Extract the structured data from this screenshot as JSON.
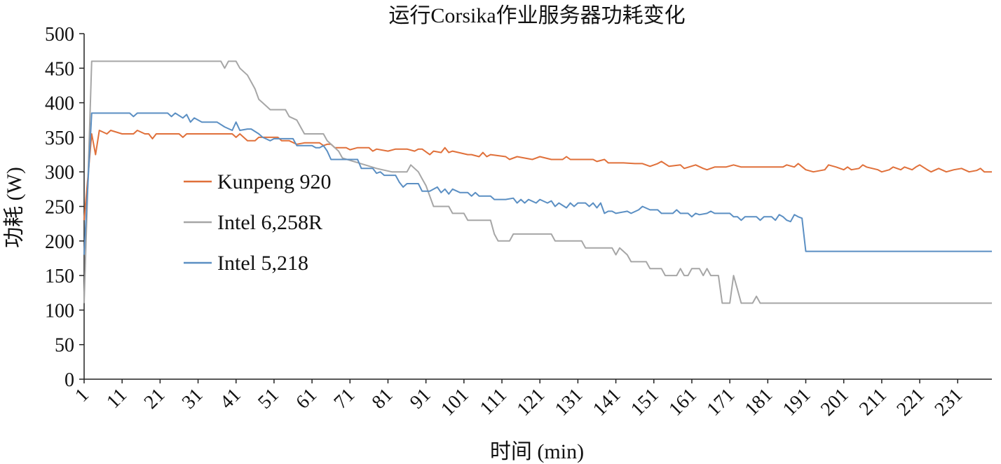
{
  "chart_data": {
    "type": "line",
    "title": "运行Corsika作业服务器功耗变化",
    "xlabel": "时间 (min)",
    "ylabel": "功耗 (W)",
    "xlim": [
      1,
      240
    ],
    "ylim": [
      0,
      500
    ],
    "y_ticks": [
      0,
      50,
      100,
      150,
      200,
      250,
      300,
      350,
      400,
      450,
      500
    ],
    "x_ticks": [
      1,
      11,
      21,
      31,
      41,
      51,
      61,
      71,
      81,
      91,
      101,
      111,
      121,
      131,
      141,
      151,
      161,
      171,
      181,
      191,
      201,
      211,
      221,
      231
    ],
    "grid": false,
    "legend_position": "middle-left",
    "series": [
      {
        "name": "Kunpeng 920",
        "color": "#E0703A",
        "points": [
          [
            1,
            230
          ],
          [
            3,
            355
          ],
          [
            4,
            325
          ],
          [
            5,
            360
          ],
          [
            7,
            355
          ],
          [
            8,
            360
          ],
          [
            11,
            355
          ],
          [
            14,
            355
          ],
          [
            15,
            360
          ],
          [
            17,
            355
          ],
          [
            18,
            355
          ],
          [
            19,
            348
          ],
          [
            20,
            355
          ],
          [
            26,
            355
          ],
          [
            27,
            350
          ],
          [
            28,
            355
          ],
          [
            40,
            355
          ],
          [
            41,
            350
          ],
          [
            42,
            355
          ],
          [
            44,
            345
          ],
          [
            46,
            345
          ],
          [
            47,
            350
          ],
          [
            52,
            350
          ],
          [
            53,
            345
          ],
          [
            55,
            345
          ],
          [
            57,
            340
          ],
          [
            59,
            342
          ],
          [
            63,
            342
          ],
          [
            64,
            338
          ],
          [
            65,
            340
          ],
          [
            66,
            340
          ],
          [
            67,
            335
          ],
          [
            70,
            335
          ],
          [
            71,
            332
          ],
          [
            73,
            335
          ],
          [
            76,
            335
          ],
          [
            77,
            330
          ],
          [
            78,
            333
          ],
          [
            81,
            330
          ],
          [
            83,
            333
          ],
          [
            86,
            333
          ],
          [
            88,
            330
          ],
          [
            89,
            333
          ],
          [
            90,
            333
          ],
          [
            92,
            325
          ],
          [
            93,
            330
          ],
          [
            95,
            328
          ],
          [
            96,
            335
          ],
          [
            97,
            328
          ],
          [
            98,
            330
          ],
          [
            102,
            325
          ],
          [
            103,
            325
          ],
          [
            105,
            322
          ],
          [
            106,
            328
          ],
          [
            107,
            322
          ],
          [
            108,
            325
          ],
          [
            112,
            322
          ],
          [
            113,
            318
          ],
          [
            115,
            322
          ],
          [
            119,
            318
          ],
          [
            121,
            322
          ],
          [
            124,
            318
          ],
          [
            127,
            318
          ],
          [
            128,
            322
          ],
          [
            129,
            318
          ],
          [
            135,
            318
          ],
          [
            136,
            315
          ],
          [
            138,
            318
          ],
          [
            139,
            313
          ],
          [
            143,
            313
          ],
          [
            146,
            312
          ],
          [
            148,
            312
          ],
          [
            150,
            308
          ],
          [
            152,
            312
          ],
          [
            153,
            315
          ],
          [
            155,
            308
          ],
          [
            158,
            310
          ],
          [
            159,
            305
          ],
          [
            162,
            310
          ],
          [
            164,
            305
          ],
          [
            165,
            303
          ],
          [
            167,
            307
          ],
          [
            170,
            307
          ],
          [
            172,
            310
          ],
          [
            174,
            307
          ],
          [
            185,
            307
          ],
          [
            186,
            310
          ],
          [
            188,
            307
          ],
          [
            189,
            312
          ],
          [
            191,
            303
          ],
          [
            193,
            300
          ],
          [
            196,
            303
          ],
          [
            197,
            310
          ],
          [
            199,
            307
          ],
          [
            201,
            303
          ],
          [
            202,
            307
          ],
          [
            203,
            303
          ],
          [
            205,
            305
          ],
          [
            206,
            310
          ],
          [
            207,
            307
          ],
          [
            210,
            303
          ],
          [
            211,
            300
          ],
          [
            213,
            303
          ],
          [
            214,
            307
          ],
          [
            216,
            303
          ],
          [
            217,
            307
          ],
          [
            219,
            303
          ],
          [
            220,
            307
          ],
          [
            221,
            310
          ],
          [
            223,
            303
          ],
          [
            224,
            300
          ],
          [
            226,
            305
          ],
          [
            228,
            300
          ],
          [
            230,
            303
          ],
          [
            232,
            305
          ],
          [
            234,
            300
          ],
          [
            236,
            302
          ],
          [
            237,
            305
          ],
          [
            238,
            300
          ],
          [
            240,
            300
          ]
        ]
      },
      {
        "name": "Intel 6,258R",
        "color": "#A6A6A6",
        "points": [
          [
            1,
            110
          ],
          [
            3,
            460
          ],
          [
            37,
            460
          ],
          [
            38,
            450
          ],
          [
            39,
            460
          ],
          [
            41,
            460
          ],
          [
            42,
            450
          ],
          [
            44,
            440
          ],
          [
            45,
            430
          ],
          [
            46,
            420
          ],
          [
            47,
            405
          ],
          [
            48,
            400
          ],
          [
            50,
            390
          ],
          [
            54,
            390
          ],
          [
            55,
            380
          ],
          [
            57,
            375
          ],
          [
            58,
            365
          ],
          [
            59,
            355
          ],
          [
            64,
            355
          ],
          [
            65,
            345
          ],
          [
            68,
            330
          ],
          [
            69,
            320
          ],
          [
            72,
            315
          ],
          [
            75,
            310
          ],
          [
            78,
            305
          ],
          [
            82,
            300
          ],
          [
            86,
            300
          ],
          [
            87,
            310
          ],
          [
            89,
            300
          ],
          [
            90,
            290
          ],
          [
            91,
            280
          ],
          [
            92,
            265
          ],
          [
            93,
            250
          ],
          [
            97,
            250
          ],
          [
            98,
            240
          ],
          [
            101,
            240
          ],
          [
            102,
            230
          ],
          [
            108,
            230
          ],
          [
            109,
            210
          ],
          [
            110,
            200
          ],
          [
            113,
            200
          ],
          [
            114,
            210
          ],
          [
            124,
            210
          ],
          [
            125,
            200
          ],
          [
            132,
            200
          ],
          [
            133,
            190
          ],
          [
            140,
            190
          ],
          [
            141,
            180
          ],
          [
            142,
            190
          ],
          [
            144,
            180
          ],
          [
            145,
            170
          ],
          [
            149,
            170
          ],
          [
            150,
            160
          ],
          [
            153,
            160
          ],
          [
            154,
            150
          ],
          [
            157,
            150
          ],
          [
            158,
            160
          ],
          [
            159,
            150
          ],
          [
            160,
            150
          ],
          [
            161,
            160
          ],
          [
            163,
            160
          ],
          [
            164,
            150
          ],
          [
            165,
            160
          ],
          [
            166,
            150
          ],
          [
            168,
            150
          ],
          [
            169,
            110
          ],
          [
            171,
            110
          ],
          [
            172,
            150
          ],
          [
            173,
            130
          ],
          [
            174,
            110
          ],
          [
            177,
            110
          ],
          [
            178,
            120
          ],
          [
            179,
            110
          ],
          [
            240,
            110
          ]
        ]
      },
      {
        "name": "Intel 5,218",
        "color": "#5B8FC3",
        "points": [
          [
            1,
            180
          ],
          [
            3,
            385
          ],
          [
            13,
            385
          ],
          [
            14,
            380
          ],
          [
            15,
            385
          ],
          [
            23,
            385
          ],
          [
            24,
            380
          ],
          [
            25,
            385
          ],
          [
            27,
            378
          ],
          [
            28,
            383
          ],
          [
            29,
            372
          ],
          [
            30,
            378
          ],
          [
            32,
            372
          ],
          [
            36,
            372
          ],
          [
            38,
            365
          ],
          [
            40,
            360
          ],
          [
            41,
            372
          ],
          [
            42,
            360
          ],
          [
            44,
            362
          ],
          [
            45,
            362
          ],
          [
            47,
            355
          ],
          [
            48,
            350
          ],
          [
            50,
            345
          ],
          [
            51,
            348
          ],
          [
            52,
            348
          ],
          [
            56,
            348
          ],
          [
            57,
            338
          ],
          [
            61,
            338
          ],
          [
            62,
            335
          ],
          [
            63,
            335
          ],
          [
            64,
            338
          ],
          [
            65,
            330
          ],
          [
            66,
            318
          ],
          [
            73,
            318
          ],
          [
            74,
            305
          ],
          [
            77,
            305
          ],
          [
            78,
            298
          ],
          [
            79,
            300
          ],
          [
            80,
            295
          ],
          [
            83,
            295
          ],
          [
            84,
            285
          ],
          [
            85,
            278
          ],
          [
            86,
            283
          ],
          [
            89,
            283
          ],
          [
            90,
            272
          ],
          [
            92,
            272
          ],
          [
            94,
            278
          ],
          [
            95,
            270
          ],
          [
            96,
            275
          ],
          [
            97,
            268
          ],
          [
            98,
            275
          ],
          [
            100,
            270
          ],
          [
            102,
            270
          ],
          [
            103,
            265
          ],
          [
            104,
            270
          ],
          [
            105,
            265
          ],
          [
            108,
            265
          ],
          [
            109,
            260
          ],
          [
            112,
            260
          ],
          [
            114,
            262
          ],
          [
            115,
            255
          ],
          [
            116,
            260
          ],
          [
            117,
            255
          ],
          [
            118,
            260
          ],
          [
            120,
            255
          ],
          [
            121,
            260
          ],
          [
            123,
            255
          ],
          [
            124,
            258
          ],
          [
            125,
            250
          ],
          [
            126,
            255
          ],
          [
            128,
            248
          ],
          [
            129,
            255
          ],
          [
            130,
            250
          ],
          [
            131,
            255
          ],
          [
            133,
            255
          ],
          [
            134,
            250
          ],
          [
            135,
            255
          ],
          [
            136,
            248
          ],
          [
            137,
            255
          ],
          [
            138,
            240
          ],
          [
            139,
            243
          ],
          [
            140,
            243
          ],
          [
            141,
            240
          ],
          [
            144,
            243
          ],
          [
            145,
            240
          ],
          [
            147,
            245
          ],
          [
            148,
            250
          ],
          [
            150,
            245
          ],
          [
            152,
            245
          ],
          [
            153,
            240
          ],
          [
            156,
            240
          ],
          [
            157,
            245
          ],
          [
            158,
            240
          ],
          [
            160,
            240
          ],
          [
            161,
            235
          ],
          [
            162,
            240
          ],
          [
            163,
            238
          ],
          [
            165,
            240
          ],
          [
            166,
            243
          ],
          [
            167,
            240
          ],
          [
            171,
            240
          ],
          [
            172,
            235
          ],
          [
            173,
            235
          ],
          [
            174,
            230
          ],
          [
            175,
            235
          ],
          [
            178,
            235
          ],
          [
            179,
            230
          ],
          [
            180,
            235
          ],
          [
            182,
            235
          ],
          [
            183,
            230
          ],
          [
            184,
            238
          ],
          [
            185,
            235
          ],
          [
            186,
            230
          ],
          [
            187,
            228
          ],
          [
            188,
            238
          ],
          [
            189,
            235
          ],
          [
            190,
            233
          ],
          [
            191,
            185
          ],
          [
            240,
            185
          ]
        ]
      }
    ]
  }
}
